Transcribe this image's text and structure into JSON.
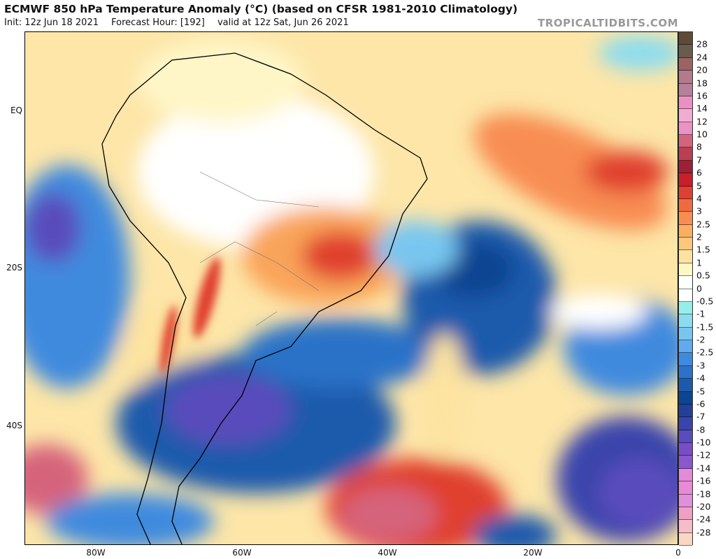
{
  "header": {
    "title": "ECMWF 850 hPa Temperature Anomaly (°C) (based on CFSR 1981-2010 Climatology)",
    "init": "Init: 12z Jun 18 2021",
    "forecast_hour": "Forecast Hour: [192]",
    "valid": "valid at 12z Sat, Jun 26 2021",
    "brand": "TROPICALTIDBITS.COM"
  },
  "map": {
    "lat_labels": [
      "EQ",
      "20S",
      "40S"
    ],
    "lon_labels": [
      "80W",
      "60W",
      "40W",
      "20W",
      "0"
    ]
  },
  "colorbar": {
    "labels": [
      "28",
      "24",
      "20",
      "18",
      "16",
      "14",
      "12",
      "10",
      "8",
      "7",
      "6",
      "5",
      "4",
      "3",
      "2.5",
      "2",
      "1.5",
      "1",
      "0.5",
      "0",
      "-0.5",
      "-1",
      "-1.5",
      "-2",
      "-2.5",
      "-3",
      "-4",
      "-5",
      "-6",
      "-7",
      "-8",
      "-10",
      "-12",
      "-14",
      "-16",
      "-18",
      "-20",
      "-24",
      "-28"
    ],
    "colors": [
      "#5d4b38",
      "#6a5b4f",
      "#9c6363",
      "#b27a8a",
      "#b6809a",
      "#ec90c4",
      "#f2acd2",
      "#ea92c4",
      "#d6637c",
      "#b93f52",
      "#9e2034",
      "#c81f2a",
      "#e0402f",
      "#f06a40",
      "#f88d52",
      "#fbae62",
      "#fdc87c",
      "#fde3a0",
      "#fff8c4",
      "#ffffff",
      "#ffffff",
      "#96eeea",
      "#8cdcef",
      "#78c6f0",
      "#62aaf0",
      "#3f8ade",
      "#2c72c8",
      "#1c5aac",
      "#0e4592",
      "#233f9a",
      "#3a44ac",
      "#5a4cbc",
      "#7a4cc8",
      "#8a58cc",
      "#e48ad8",
      "#e88ad8",
      "#e090d8",
      "#f0a0c4",
      "#f6bcc8",
      "#fbd6c0"
    ]
  }
}
